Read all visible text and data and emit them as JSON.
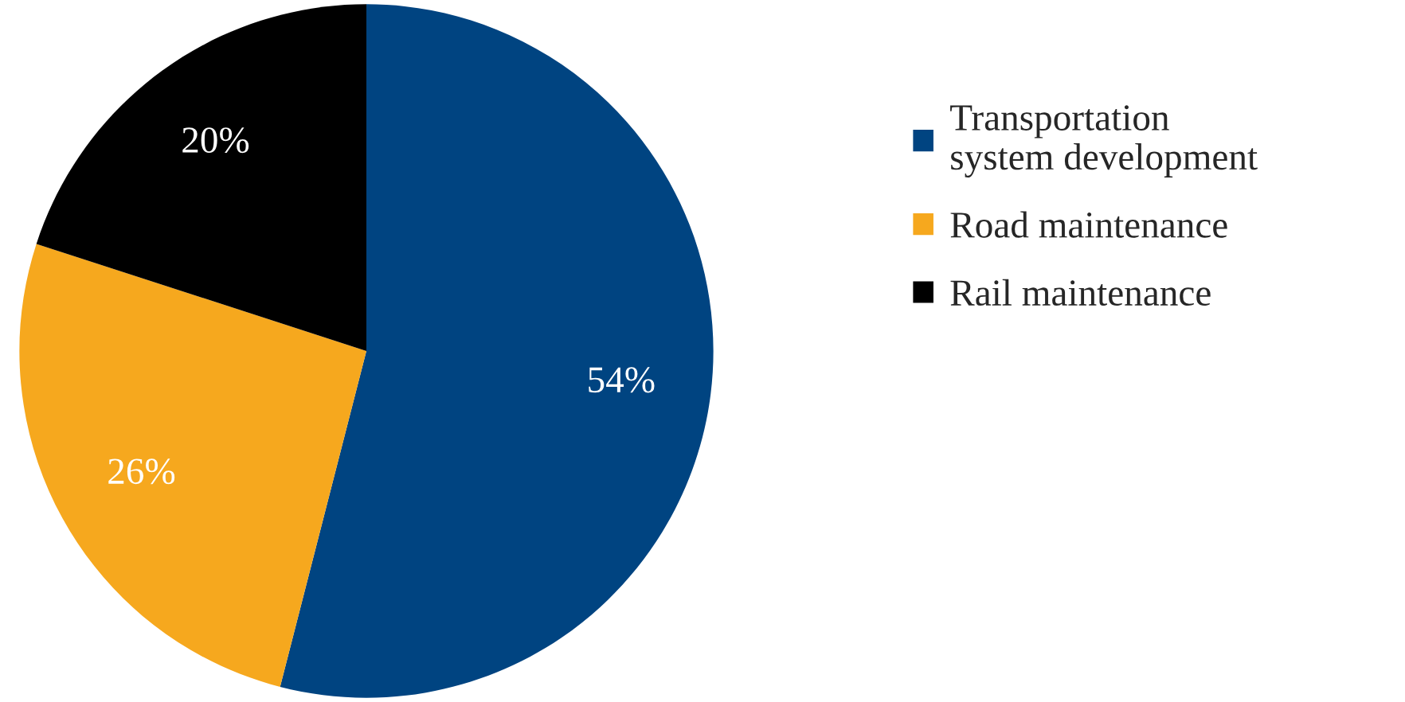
{
  "chart_data": {
    "type": "pie",
    "categories": [
      "Transportation\nsystem development",
      "Road maintenance",
      "Rail maintenance"
    ],
    "values": [
      54,
      26,
      20
    ],
    "colors": [
      "#004481",
      "#f6a81e",
      "#000000"
    ],
    "value_labels": [
      "54%",
      "26%",
      "20%"
    ],
    "legend": "right"
  }
}
